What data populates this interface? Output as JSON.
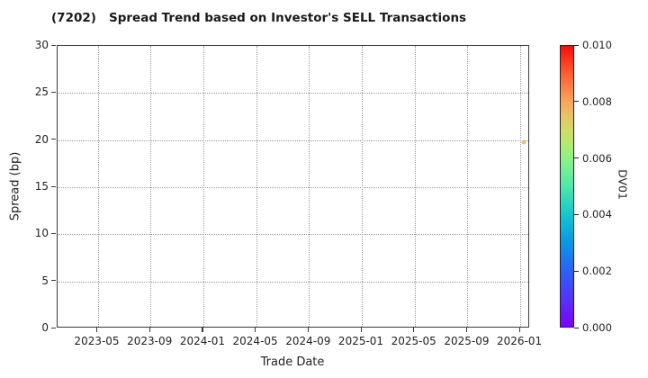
{
  "chart_data": {
    "type": "scatter",
    "title": "(7202)   Spread Trend based on Investor's SELL Transactions",
    "xlabel": "Trade Date",
    "ylabel": "Spread (bp)",
    "x_tick_labels": [
      "2023-05",
      "2023-09",
      "2024-01",
      "2024-05",
      "2024-09",
      "2025-01",
      "2025-05",
      "2025-09",
      "2026-01"
    ],
    "x_axis_start": "2023-05",
    "x_months_per_tick": 4,
    "y_ticks": [
      0,
      5,
      10,
      15,
      20,
      25,
      30
    ],
    "ylim": [
      0,
      30
    ],
    "grid": true,
    "legend": "none",
    "points": [
      {
        "date": "2026-01-12",
        "spread_bp": 19.7,
        "dv01_est": 0.007,
        "marker_color": "#dcc96b"
      }
    ],
    "colorbar": {
      "label": "DV01",
      "tick_labels": [
        "0.000",
        "0.002",
        "0.004",
        "0.006",
        "0.008",
        "0.010"
      ],
      "vmin": 0.0,
      "vmax": 0.01,
      "colormap": "rainbow",
      "gradient_bottom_to_top": [
        {
          "pos": 0,
          "color": "#7d02fa"
        },
        {
          "pos": 10,
          "color": "#5333fb"
        },
        {
          "pos": 20,
          "color": "#2a63f5"
        },
        {
          "pos": 30,
          "color": "#0b96e6"
        },
        {
          "pos": 40,
          "color": "#15c6cd"
        },
        {
          "pos": 50,
          "color": "#4fe8ab"
        },
        {
          "pos": 60,
          "color": "#8df285"
        },
        {
          "pos": 65,
          "color": "#b0ec72"
        },
        {
          "pos": 70,
          "color": "#d0dc68"
        },
        {
          "pos": 75,
          "color": "#e7c368"
        },
        {
          "pos": 80,
          "color": "#f7a65b"
        },
        {
          "pos": 90,
          "color": "#fd5f33"
        },
        {
          "pos": 100,
          "color": "#f80c0c"
        }
      ]
    }
  },
  "colors": {
    "background": "#ffffff",
    "axis": "#3a3a3a",
    "grid": "#9b9b9b",
    "text": "#222222"
  }
}
